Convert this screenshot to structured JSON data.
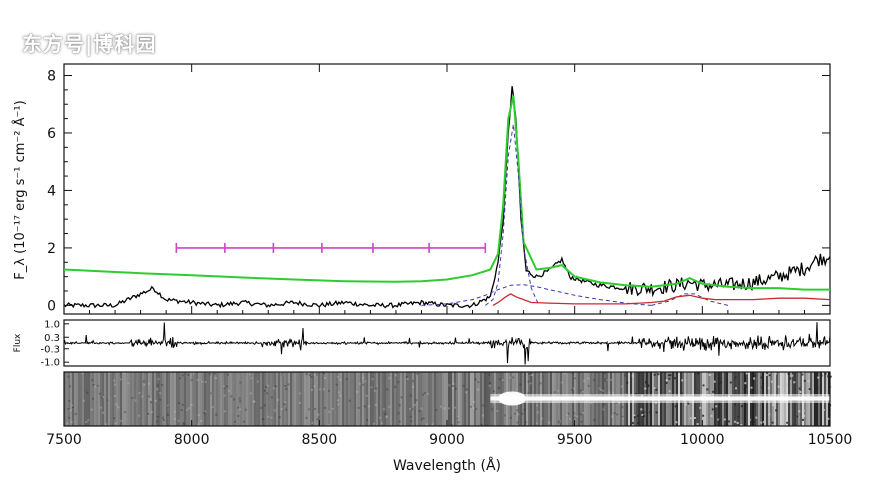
{
  "watermark": "东方号|博科园",
  "chart_data": [
    {
      "type": "line",
      "panel": "spectrum",
      "ylabel": "F_λ (10⁻¹⁷ erg s⁻¹ cm⁻² Å⁻¹)",
      "xlim": [
        7500,
        10500
      ],
      "ylim": [
        -0.3,
        8.4
      ],
      "yticks": [
        0,
        2,
        4,
        6,
        8
      ],
      "series": [
        {
          "color": "#000000",
          "style": "solid",
          "x": [
            7500,
            7700,
            7800,
            7850,
            7900,
            8000,
            8100,
            8200,
            8300,
            8400,
            8500,
            8600,
            8700,
            8800,
            8900,
            9000,
            9100,
            9170,
            9200,
            9220,
            9240,
            9255,
            9270,
            9290,
            9310,
            9350,
            9400,
            9450,
            9480,
            9550,
            9600,
            9700,
            9800,
            9900,
            9950,
            10000,
            10100,
            10200,
            10300,
            10400,
            10450,
            10500
          ],
          "y": [
            0.0,
            0.0,
            0.4,
            0.6,
            0.2,
            0.1,
            0.0,
            0.1,
            0.0,
            0.1,
            0.0,
            0.1,
            0.0,
            0.0,
            0.1,
            0.0,
            0.0,
            0.3,
            1.5,
            3.0,
            6.0,
            7.6,
            6.5,
            3.0,
            1.2,
            1.0,
            1.2,
            1.6,
            1.0,
            0.8,
            0.7,
            0.6,
            0.6,
            0.7,
            0.8,
            0.7,
            0.7,
            0.8,
            1.0,
            1.3,
            1.6,
            1.7
          ]
        },
        {
          "color": "#2ecc2e",
          "style": "solid",
          "x": [
            7500,
            7800,
            8000,
            8200,
            8400,
            8600,
            8800,
            8900,
            9000,
            9100,
            9170,
            9200,
            9220,
            9240,
            9260,
            9280,
            9300,
            9350,
            9400,
            9450,
            9500,
            9600,
            9700,
            9800,
            9900,
            9950,
            10000,
            10100,
            10200,
            10300,
            10400,
            10500
          ],
          "y": [
            1.25,
            1.12,
            1.05,
            0.97,
            0.9,
            0.84,
            0.82,
            0.84,
            0.9,
            1.05,
            1.25,
            1.8,
            3.5,
            6.5,
            7.3,
            5.0,
            2.2,
            1.25,
            1.3,
            1.4,
            1.0,
            0.8,
            0.7,
            0.65,
            0.75,
            0.95,
            0.75,
            0.65,
            0.6,
            0.6,
            0.55,
            0.55
          ]
        },
        {
          "color": "#3a3aa8",
          "style": "dashed",
          "x": [
            8900,
            9000,
            9100,
            9150,
            9200,
            9250,
            9300,
            9350,
            9400,
            9450,
            9500,
            9600,
            9700,
            9800
          ],
          "y": [
            0.0,
            0.05,
            0.2,
            0.35,
            0.55,
            0.7,
            0.72,
            0.65,
            0.55,
            0.45,
            0.35,
            0.2,
            0.08,
            0.0
          ]
        },
        {
          "color": "#3a3aa8",
          "style": "dashed",
          "x": [
            9150,
            9180,
            9200,
            9220,
            9240,
            9260,
            9280,
            9300,
            9330,
            9360
          ],
          "y": [
            0.0,
            0.2,
            0.8,
            2.5,
            5.2,
            6.3,
            4.5,
            2.0,
            0.6,
            0.0
          ]
        },
        {
          "color": "#3a3aa8",
          "style": "dashed",
          "x": [
            9800,
            9870,
            9930,
            9970,
            10030,
            10100
          ],
          "y": [
            0.0,
            0.15,
            0.4,
            0.4,
            0.15,
            0.0
          ]
        },
        {
          "color": "#cc2a2a",
          "style": "solid",
          "x": [
            9180,
            9200,
            9230,
            9250,
            9270,
            9300,
            9330,
            9400,
            9500,
            9600,
            9700,
            9800,
            9850,
            9900,
            9950,
            10000,
            10050,
            10100,
            10200,
            10300,
            10400,
            10500
          ],
          "y": [
            0.0,
            0.1,
            0.3,
            0.4,
            0.3,
            0.2,
            0.1,
            0.08,
            0.05,
            0.05,
            0.05,
            0.1,
            0.15,
            0.3,
            0.35,
            0.25,
            0.2,
            0.2,
            0.2,
            0.25,
            0.25,
            0.2
          ]
        }
      ],
      "errorbar": {
        "color": "#cc44cc",
        "y": 2.0,
        "x_start": 7940,
        "x_end": 9150,
        "ticks": [
          7940,
          8130,
          8320,
          8510,
          8710,
          8930,
          9150
        ]
      }
    },
    {
      "type": "line",
      "panel": "residual",
      "ylabel": "Flux",
      "xlim": [
        7500,
        10500
      ],
      "ylim": [
        -1.2,
        1.2
      ],
      "yticks": [
        1.0,
        0.3,
        -0.3,
        -1.0
      ],
      "ytick_labels": [
        "1.0",
        "0.3",
        "-0.3",
        "-1.0"
      ],
      "series": [
        {
          "color": "#000000",
          "style": "solid",
          "noise_amp_low": 0.08,
          "noise_amp_high": 0.5
        }
      ]
    },
    {
      "type": "heatmap",
      "panel": "2d-spectrum",
      "trace_x_start": 9170,
      "trace_x_end": 10500,
      "xlabel": "Wavelength (Å)",
      "xticks": [
        7500,
        8000,
        8500,
        9000,
        9500,
        10000,
        10500
      ],
      "xtick_labels": [
        "7500",
        "8000",
        "8500",
        "9000",
        "9500",
        "10000",
        "10500"
      ]
    }
  ]
}
